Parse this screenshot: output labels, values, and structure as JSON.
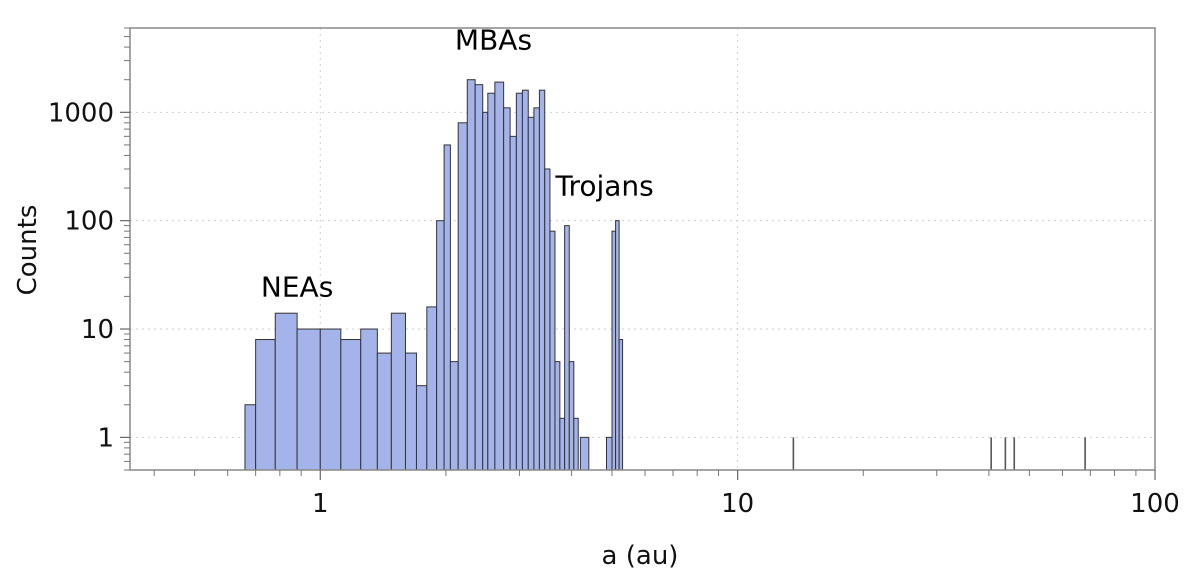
{
  "chart_data": {
    "type": "bar",
    "title": "",
    "xlabel": "a (au)",
    "ylabel": "Counts",
    "xscale": "log",
    "yscale": "log",
    "xlim": [
      0.35,
      100
    ],
    "ylim": [
      0.5,
      6000
    ],
    "grid": true,
    "legend": "none",
    "bar_color": "#a4b4ea",
    "bar_edge_color": "#333333",
    "x_ticks": [
      "1",
      "10",
      "100"
    ],
    "y_ticks": [
      "1",
      "10",
      "100",
      "1000"
    ],
    "annotations": [
      {
        "text": "NEAs",
        "x": 0.88,
        "y": 20
      },
      {
        "text": "MBAs",
        "x": 2.6,
        "y": 3800
      },
      {
        "text": "Trojans",
        "x": 4.8,
        "y": 170
      }
    ],
    "bins": [
      {
        "x0": 0.66,
        "x1": 0.7,
        "count": 2
      },
      {
        "x0": 0.7,
        "x1": 0.78,
        "count": 8
      },
      {
        "x0": 0.78,
        "x1": 0.88,
        "count": 14
      },
      {
        "x0": 0.88,
        "x1": 1.0,
        "count": 10
      },
      {
        "x0": 1.0,
        "x1": 1.12,
        "count": 10
      },
      {
        "x0": 1.12,
        "x1": 1.25,
        "count": 8
      },
      {
        "x0": 1.25,
        "x1": 1.37,
        "count": 10
      },
      {
        "x0": 1.37,
        "x1": 1.48,
        "count": 6
      },
      {
        "x0": 1.48,
        "x1": 1.6,
        "count": 14
      },
      {
        "x0": 1.6,
        "x1": 1.7,
        "count": 6
      },
      {
        "x0": 1.7,
        "x1": 1.8,
        "count": 3
      },
      {
        "x0": 1.8,
        "x1": 1.9,
        "count": 16
      },
      {
        "x0": 1.9,
        "x1": 1.98,
        "count": 100
      },
      {
        "x0": 1.98,
        "x1": 2.05,
        "count": 500
      },
      {
        "x0": 2.05,
        "x1": 2.14,
        "count": 5
      },
      {
        "x0": 2.14,
        "x1": 2.25,
        "count": 800
      },
      {
        "x0": 2.25,
        "x1": 2.35,
        "count": 2000
      },
      {
        "x0": 2.35,
        "x1": 2.45,
        "count": 1800
      },
      {
        "x0": 2.45,
        "x1": 2.52,
        "count": 1000
      },
      {
        "x0": 2.52,
        "x1": 2.62,
        "count": 1500
      },
      {
        "x0": 2.62,
        "x1": 2.75,
        "count": 1900
      },
      {
        "x0": 2.75,
        "x1": 2.85,
        "count": 1100
      },
      {
        "x0": 2.85,
        "x1": 2.95,
        "count": 600
      },
      {
        "x0": 2.95,
        "x1": 3.05,
        "count": 1500
      },
      {
        "x0": 3.05,
        "x1": 3.15,
        "count": 1600
      },
      {
        "x0": 3.15,
        "x1": 3.25,
        "count": 900
      },
      {
        "x0": 3.25,
        "x1": 3.35,
        "count": 1100
      },
      {
        "x0": 3.35,
        "x1": 3.45,
        "count": 1600
      },
      {
        "x0": 3.45,
        "x1": 3.55,
        "count": 300
      },
      {
        "x0": 3.55,
        "x1": 3.65,
        "count": 80
      },
      {
        "x0": 3.65,
        "x1": 3.75,
        "count": 5
      },
      {
        "x0": 3.75,
        "x1": 3.85,
        "count": 1.5
      },
      {
        "x0": 3.85,
        "x1": 3.95,
        "count": 90
      },
      {
        "x0": 3.95,
        "x1": 4.05,
        "count": 5
      },
      {
        "x0": 4.05,
        "x1": 4.15,
        "count": 1.5
      },
      {
        "x0": 4.2,
        "x1": 4.4,
        "count": 1
      },
      {
        "x0": 4.85,
        "x1": 5.0,
        "count": 1
      },
      {
        "x0": 5.0,
        "x1": 5.1,
        "count": 80
      },
      {
        "x0": 5.1,
        "x1": 5.2,
        "count": 100
      },
      {
        "x0": 5.2,
        "x1": 5.3,
        "count": 8
      }
    ],
    "singles": [
      {
        "x": 13.6,
        "count": 1
      },
      {
        "x": 40.5,
        "count": 1
      },
      {
        "x": 43.8,
        "count": 1
      },
      {
        "x": 46.0,
        "count": 1
      },
      {
        "x": 68.0,
        "count": 1
      }
    ]
  }
}
